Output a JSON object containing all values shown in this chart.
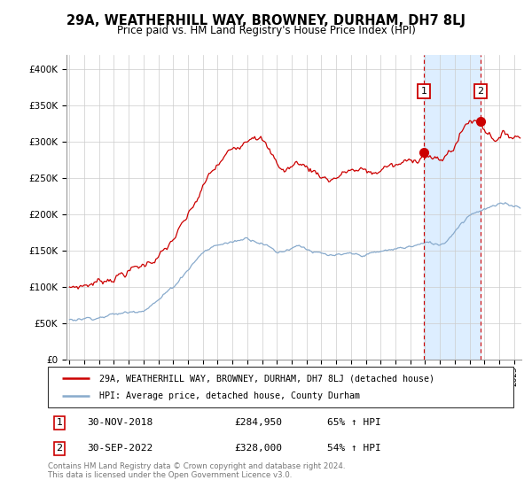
{
  "title": "29A, WEATHERHILL WAY, BROWNEY, DURHAM, DH7 8LJ",
  "subtitle": "Price paid vs. HM Land Registry's House Price Index (HPI)",
  "ylim": [
    0,
    420000
  ],
  "yticks": [
    0,
    50000,
    100000,
    150000,
    200000,
    250000,
    300000,
    350000,
    400000
  ],
  "ytick_labels": [
    "£0",
    "£50K",
    "£100K",
    "£150K",
    "£200K",
    "£250K",
    "£300K",
    "£350K",
    "£400K"
  ],
  "sale1_year": 2018.92,
  "sale1_price": 284950,
  "sale2_year": 2022.75,
  "sale2_price": 328000,
  "legend_line1": "29A, WEATHERHILL WAY, BROWNEY, DURHAM, DH7 8LJ (detached house)",
  "legend_line2": "HPI: Average price, detached house, County Durham",
  "table_row1": [
    "1",
    "30-NOV-2018",
    "£284,950",
    "65% ↑ HPI"
  ],
  "table_row2": [
    "2",
    "30-SEP-2022",
    "£328,000",
    "54% ↑ HPI"
  ],
  "footnote": "Contains HM Land Registry data © Crown copyright and database right 2024.\nThis data is licensed under the Open Government Licence v3.0.",
  "line_color_red": "#cc0000",
  "line_color_blue": "#88aacc",
  "shaded_color": "#ddeeff",
  "marker_box_color": "#cc0000",
  "background_color": "#ffffff",
  "grid_color": "#cccccc",
  "xlim_start": 1995.0,
  "xlim_end": 2025.5
}
